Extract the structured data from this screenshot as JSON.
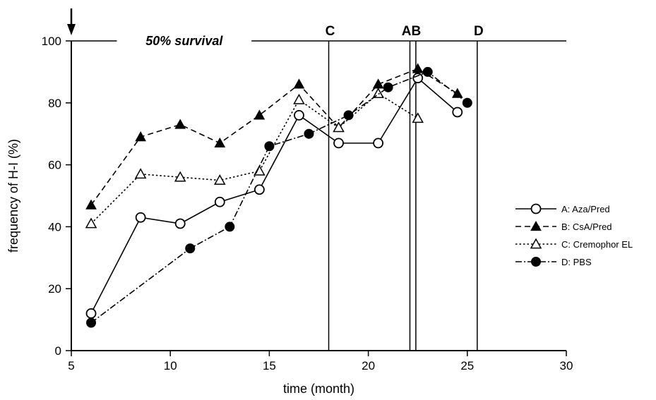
{
  "chart_data": {
    "type": "line",
    "xlabel": "time (month)",
    "ylabel": "frequency of H-I (%)",
    "xlim": [
      5,
      30
    ],
    "ylim": [
      0,
      100
    ],
    "x_ticks": [
      "5",
      "10",
      "15",
      "20",
      "25",
      "30"
    ],
    "y_ticks": [
      "0",
      "20",
      "40",
      "60",
      "80",
      "100"
    ],
    "grid": false,
    "legend_position": "right",
    "banner": "50% survival",
    "start_arrow_x": 5,
    "survival_markers": [
      {
        "label": "C",
        "x": 18.0
      },
      {
        "label": "AB",
        "x": 22.1
      },
      {
        "label": "",
        "x": 22.4
      },
      {
        "label": "D",
        "x": 25.5
      }
    ],
    "series": [
      {
        "name": "A: Aza/Pred",
        "marker": "open-circle",
        "line": "solid",
        "x": [
          6,
          8.5,
          10.5,
          12.5,
          14.5,
          16.5,
          18.5,
          20.5,
          22.5,
          24.5
        ],
        "y": [
          12,
          43,
          41,
          48,
          52,
          76,
          67,
          67,
          88,
          77
        ]
      },
      {
        "name": "B: CsA/Pred",
        "marker": "filled-triangle",
        "line": "dashed",
        "x": [
          6,
          8.5,
          10.5,
          12.5,
          14.5,
          16.5,
          18.5,
          20.5,
          22.5,
          24.5
        ],
        "y": [
          47,
          69,
          73,
          67,
          76,
          86,
          72,
          86,
          91,
          83
        ]
      },
      {
        "name": "C: Cremophor EL",
        "marker": "open-triangle",
        "line": "dotted",
        "x": [
          6,
          8.5,
          10.5,
          12.5,
          14.5,
          16.5,
          18.5,
          20.5,
          22.5
        ],
        "y": [
          41,
          57,
          56,
          55,
          58,
          81,
          72,
          83,
          75
        ]
      },
      {
        "name": "D: PBS",
        "marker": "filled-circle",
        "line": "dashdot",
        "x": [
          6,
          11,
          13,
          15,
          17,
          19,
          21,
          23,
          25
        ],
        "y": [
          9,
          33,
          40,
          66,
          70,
          76,
          85,
          90,
          80
        ]
      }
    ]
  }
}
